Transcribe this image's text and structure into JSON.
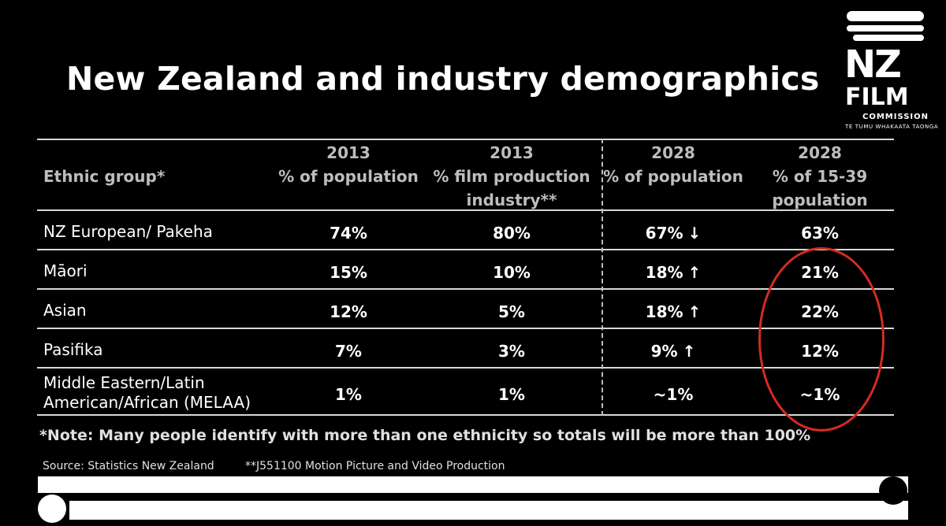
{
  "slide": {
    "title": "New Zealand and industry demographics"
  },
  "logo": {
    "line1": "NZ",
    "line2": "FILM",
    "line3": "COMMISSION",
    "tagline": "TE TUMU WHAKAATA TAONGA"
  },
  "table": {
    "headers": [
      {
        "line1": "",
        "line2": "Ethnic group*",
        "line3": ""
      },
      {
        "line1": "2013",
        "line2": "% of population",
        "line3": ""
      },
      {
        "line1": "2013",
        "line2": "% film production",
        "line3": "industry**"
      },
      {
        "line1": "2028",
        "line2": "% of population",
        "line3": ""
      },
      {
        "line1": "2028",
        "line2": "% of 15-39",
        "line3": "population"
      }
    ],
    "rows": [
      {
        "group": "NZ European/ Pakeha",
        "group2": "",
        "pop2013": "74%",
        "film2013": "80%",
        "pop2028": "67%",
        "arrow": "↓",
        "young2028": "63%"
      },
      {
        "group": "Māori",
        "group2": "",
        "pop2013": "15%",
        "film2013": "10%",
        "pop2028": "18%",
        "arrow": "↑",
        "young2028": "21%"
      },
      {
        "group": "Asian",
        "group2": "",
        "pop2013": "12%",
        "film2013": "5%",
        "pop2028": "18%",
        "arrow": "↑",
        "young2028": "22%"
      },
      {
        "group": "Pasifika",
        "group2": "",
        "pop2013": "7%",
        "film2013": "3%",
        "pop2028": "9%",
        "arrow": "↑",
        "young2028": "12%"
      },
      {
        "group": "Middle Eastern/Latin",
        "group2": "American/African (MELAA)",
        "pop2013": "1%",
        "film2013": "1%",
        "pop2028": "~1%",
        "arrow": "",
        "young2028": "~1%"
      }
    ]
  },
  "note": "*Note: Many people identify with more than one ethnicity so totals will be more than 100%",
  "source": "Source: Statistics New Zealand",
  "footnote": "**J551100 Motion Picture and Video Production",
  "colors": {
    "background": "#000000",
    "text": "#ffffff",
    "header_text": "#bdbdbd",
    "highlight_ellipse": "#d62b23"
  }
}
